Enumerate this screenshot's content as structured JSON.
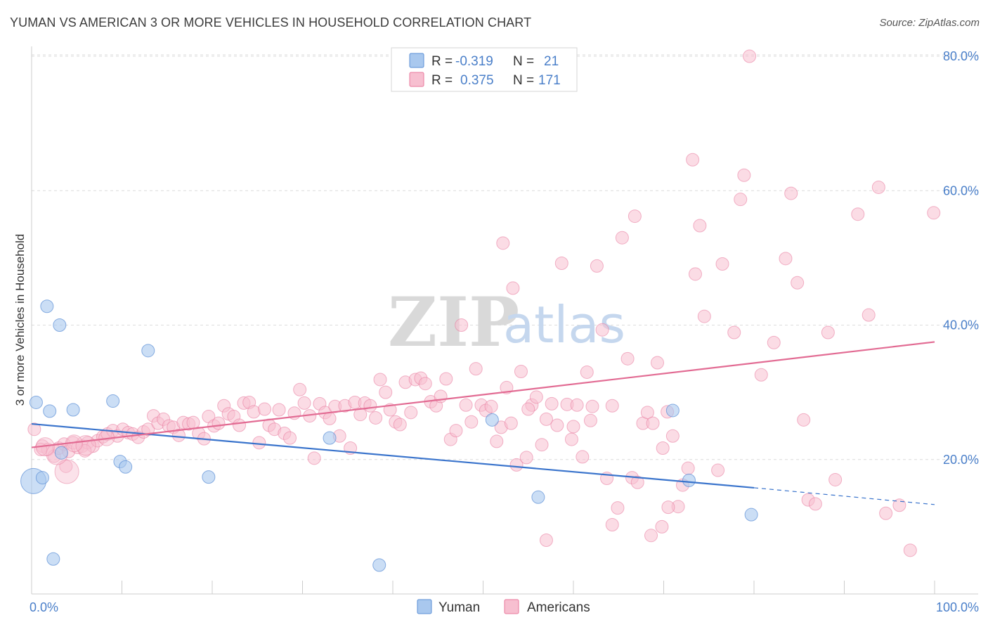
{
  "title": "YUMAN VS AMERICAN 3 OR MORE VEHICLES IN HOUSEHOLD CORRELATION CHART",
  "source": "Source: ZipAtlas.com",
  "watermark": {
    "zip": "ZIP",
    "atlas": "atlas"
  },
  "legend": {
    "rows": [
      {
        "r_label": "R =",
        "r_value": "-0.319",
        "n_label": "N =",
        "n_value": "21",
        "color": "#a9c8ee",
        "stroke": "#5b8fd6"
      },
      {
        "r_label": "R =",
        "r_value": "0.375",
        "n_label": "N =",
        "n_value": "171",
        "color": "#f7bfd0",
        "stroke": "#e8799c"
      }
    ]
  },
  "colors": {
    "yuman": "#5b8fd6",
    "yuman_fill": "#a9c8ee",
    "americans": "#e8799c",
    "americans_fill": "#f7bfd0",
    "axis_label": "#4a7fc9"
  },
  "chart_data": {
    "type": "scatter",
    "title": "YUMAN VS AMERICAN 3 OR MORE VEHICLES IN HOUSEHOLD CORRELATION CHART",
    "xlabel": "",
    "ylabel": "3 or more Vehicles in Household",
    "xlim": [
      0,
      100
    ],
    "ylim": [
      0,
      84
    ],
    "x_ticks_labels": [
      "0.0%",
      "100.0%"
    ],
    "y_ticks": [
      20,
      40,
      60,
      80
    ],
    "y_tick_labels": [
      "20.0%",
      "40.0%",
      "60.0%",
      "80.0%"
    ],
    "grid": "horizontal dashed",
    "legend_position": "top-center",
    "series": [
      {
        "name": "Yuman",
        "r": -0.319,
        "n": 21,
        "trend": {
          "x0": 0,
          "y0": 25.3,
          "x1": 80,
          "y1": 15.8,
          "dashed_to_x": 100,
          "dashed_to_y": 13.3
        },
        "points": [
          [
            0.2,
            16.8
          ],
          [
            1.2,
            17.3
          ],
          [
            0.5,
            28.5
          ],
          [
            2.0,
            27.2
          ],
          [
            1.7,
            42.8
          ],
          [
            3.1,
            40.0
          ],
          [
            4.6,
            27.4
          ],
          [
            9.0,
            28.7
          ],
          [
            12.9,
            36.2
          ],
          [
            3.3,
            21.0
          ],
          [
            9.8,
            19.7
          ],
          [
            10.4,
            18.9
          ],
          [
            19.6,
            17.4
          ],
          [
            33.0,
            23.2
          ],
          [
            2.4,
            5.2
          ],
          [
            38.5,
            4.3
          ],
          [
            51.0,
            25.9
          ],
          [
            56.1,
            14.4
          ],
          [
            71.0,
            27.3
          ],
          [
            72.8,
            16.9
          ],
          [
            79.7,
            11.8
          ]
        ],
        "sizes": [
          18,
          9,
          9,
          9,
          9,
          9,
          9,
          9,
          9,
          9,
          9,
          9,
          9,
          9,
          9,
          9,
          9,
          9,
          9,
          9,
          9
        ]
      },
      {
        "name": "Americans",
        "r": 0.375,
        "n": 171,
        "trend": {
          "x0": 0,
          "y0": 21.8,
          "x1": 100,
          "y1": 37.5
        },
        "points": [
          [
            0.3,
            24.5
          ],
          [
            1.2,
            22.0
          ],
          [
            1.8,
            21.5
          ],
          [
            2.5,
            20.5
          ],
          [
            3.0,
            21.7
          ],
          [
            3.6,
            22.3
          ],
          [
            4.1,
            21.2
          ],
          [
            4.6,
            22.5
          ],
          [
            5.1,
            21.8
          ],
          [
            5.6,
            22.0
          ],
          [
            6.2,
            22.5
          ],
          [
            6.8,
            22.0
          ],
          [
            7.3,
            22.8
          ],
          [
            7.9,
            23.4
          ],
          [
            8.4,
            23.8
          ],
          [
            9.0,
            24.3
          ],
          [
            9.5,
            23.5
          ],
          [
            10.1,
            24.5
          ],
          [
            10.7,
            24.0
          ],
          [
            11.2,
            23.8
          ],
          [
            11.8,
            23.3
          ],
          [
            12.4,
            24.1
          ],
          [
            12.9,
            24.5
          ],
          [
            13.5,
            26.5
          ],
          [
            14.0,
            25.4
          ],
          [
            14.6,
            26.0
          ],
          [
            15.2,
            25.0
          ],
          [
            15.7,
            24.8
          ],
          [
            16.3,
            23.6
          ],
          [
            16.8,
            25.5
          ],
          [
            17.4,
            25.3
          ],
          [
            17.9,
            25.5
          ],
          [
            18.5,
            23.9
          ],
          [
            19.1,
            23.1
          ],
          [
            19.6,
            26.4
          ],
          [
            20.2,
            25.0
          ],
          [
            20.7,
            25.4
          ],
          [
            21.3,
            28.0
          ],
          [
            21.8,
            26.8
          ],
          [
            22.4,
            26.4
          ],
          [
            23.0,
            25.1
          ],
          [
            23.5,
            28.4
          ],
          [
            24.1,
            28.5
          ],
          [
            24.6,
            27.1
          ],
          [
            25.2,
            22.5
          ],
          [
            25.8,
            27.5
          ],
          [
            26.3,
            25.1
          ],
          [
            26.9,
            24.5
          ],
          [
            27.4,
            27.4
          ],
          [
            28.0,
            23.9
          ],
          [
            28.6,
            23.2
          ],
          [
            29.1,
            26.9
          ],
          [
            29.7,
            30.4
          ],
          [
            30.2,
            28.4
          ],
          [
            30.8,
            26.5
          ],
          [
            31.3,
            20.2
          ],
          [
            31.9,
            28.3
          ],
          [
            32.5,
            27.0
          ],
          [
            33.0,
            26.1
          ],
          [
            33.6,
            27.9
          ],
          [
            34.1,
            23.5
          ],
          [
            34.7,
            28.0
          ],
          [
            35.3,
            21.7
          ],
          [
            35.8,
            28.5
          ],
          [
            36.4,
            26.7
          ],
          [
            36.9,
            28.4
          ],
          [
            37.5,
            28.0
          ],
          [
            38.1,
            26.2
          ],
          [
            38.6,
            31.9
          ],
          [
            39.2,
            30.0
          ],
          [
            39.7,
            27.4
          ],
          [
            40.3,
            25.6
          ],
          [
            40.8,
            25.2
          ],
          [
            41.4,
            31.5
          ],
          [
            42.0,
            27.0
          ],
          [
            42.5,
            31.9
          ],
          [
            43.1,
            32.1
          ],
          [
            43.6,
            31.3
          ],
          [
            44.2,
            28.6
          ],
          [
            44.8,
            28.0
          ],
          [
            45.3,
            29.4
          ],
          [
            45.9,
            32.0
          ],
          [
            46.4,
            23.0
          ],
          [
            47.0,
            24.3
          ],
          [
            47.6,
            40.0
          ],
          [
            48.1,
            28.1
          ],
          [
            48.7,
            25.6
          ],
          [
            49.2,
            33.5
          ],
          [
            49.8,
            28.1
          ],
          [
            50.3,
            27.3
          ],
          [
            50.9,
            27.9
          ],
          [
            51.5,
            22.7
          ],
          [
            52.0,
            24.8
          ],
          [
            52.6,
            30.7
          ],
          [
            53.1,
            25.4
          ],
          [
            53.7,
            19.2
          ],
          [
            54.2,
            33.1
          ],
          [
            54.8,
            20.3
          ],
          [
            55.4,
            28.1
          ],
          [
            55.9,
            29.3
          ],
          [
            56.5,
            22.2
          ],
          [
            57.0,
            26.0
          ],
          [
            57.6,
            28.3
          ],
          [
            58.2,
            25.1
          ],
          [
            58.7,
            49.2
          ],
          [
            59.3,
            28.2
          ],
          [
            59.8,
            23.0
          ],
          [
            60.4,
            28.1
          ],
          [
            61.0,
            20.4
          ],
          [
            61.5,
            33.0
          ],
          [
            62.1,
            27.9
          ],
          [
            62.6,
            48.8
          ],
          [
            63.2,
            39.3
          ],
          [
            63.7,
            17.2
          ],
          [
            64.3,
            28.0
          ],
          [
            64.9,
            12.8
          ],
          [
            65.4,
            53.0
          ],
          [
            66.0,
            35.0
          ],
          [
            66.5,
            17.3
          ],
          [
            67.1,
            16.6
          ],
          [
            67.7,
            25.4
          ],
          [
            68.2,
            27.0
          ],
          [
            68.8,
            25.4
          ],
          [
            69.3,
            34.4
          ],
          [
            69.9,
            21.7
          ],
          [
            70.4,
            27.1
          ],
          [
            71.0,
            23.5
          ],
          [
            71.6,
            13.0
          ],
          [
            72.1,
            16.2
          ],
          [
            72.7,
            18.7
          ],
          [
            73.2,
            64.6
          ],
          [
            52.2,
            52.2
          ],
          [
            53.3,
            45.5
          ],
          [
            64.3,
            10.3
          ],
          [
            68.6,
            8.7
          ],
          [
            69.8,
            10.0
          ],
          [
            70.5,
            12.9
          ],
          [
            73.5,
            47.6
          ],
          [
            74.0,
            54.8
          ],
          [
            74.5,
            41.3
          ],
          [
            76.5,
            49.1
          ],
          [
            76.0,
            18.4
          ],
          [
            77.8,
            38.9
          ],
          [
            78.5,
            58.7
          ],
          [
            78.9,
            62.3
          ],
          [
            79.5,
            80.0
          ],
          [
            80.8,
            32.6
          ],
          [
            82.2,
            37.4
          ],
          [
            83.5,
            49.9
          ],
          [
            84.1,
            59.6
          ],
          [
            84.8,
            46.3
          ],
          [
            85.5,
            25.9
          ],
          [
            86.0,
            14.0
          ],
          [
            86.8,
            13.4
          ],
          [
            88.2,
            38.9
          ],
          [
            89.0,
            17.0
          ],
          [
            91.5,
            56.5
          ],
          [
            92.7,
            41.5
          ],
          [
            93.8,
            60.5
          ],
          [
            94.6,
            12.0
          ],
          [
            96.1,
            13.2
          ],
          [
            97.3,
            6.5
          ],
          [
            99.9,
            56.7
          ],
          [
            57.0,
            8.0
          ],
          [
            55.0,
            27.5
          ],
          [
            66.8,
            56.2
          ],
          [
            60.0,
            24.9
          ],
          [
            61.9,
            25.8
          ],
          [
            1.0,
            21.5
          ],
          [
            3.8,
            19.0
          ],
          [
            5.9,
            21.3
          ]
        ],
        "big_points": [
          [
            3.9,
            18.2
          ],
          [
            2.8,
            20.8
          ],
          [
            1.5,
            21.9
          ],
          [
            6.0,
            22.1
          ],
          [
            4.7,
            22.4
          ],
          [
            8.3,
            23.2
          ]
        ]
      }
    ]
  },
  "bottom_legend": {
    "items": [
      {
        "label": "Yuman"
      },
      {
        "label": "Americans"
      }
    ]
  }
}
